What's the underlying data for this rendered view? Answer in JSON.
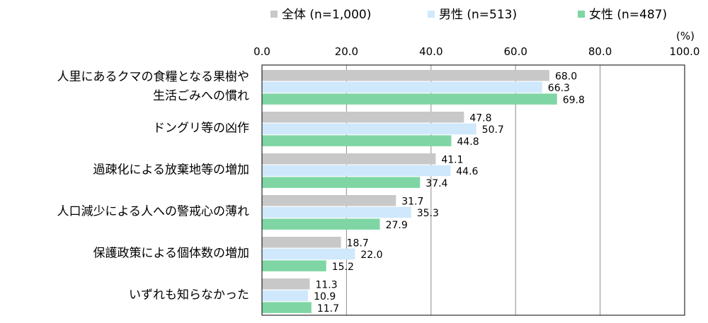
{
  "chart_data": {
    "type": "bar",
    "orientation": "horizontal",
    "unit_label": "(%)",
    "xlim": [
      0,
      100
    ],
    "ticks": [
      "0.0",
      "20.0",
      "40.0",
      "60.0",
      "80.0",
      "100.0"
    ],
    "tick_values": [
      0,
      20,
      40,
      60,
      80,
      100
    ],
    "grid": true,
    "legend_position": "top-right",
    "categories": [
      [
        "人里にあるクマの食糧となる果樹や",
        "生活ごみへの慣れ"
      ],
      [
        "ドングリ等の凶作"
      ],
      [
        "過疎化による放棄地等の増加"
      ],
      [
        "人口減少による人への警戒心の薄れ"
      ],
      [
        "保護政策による個体数の増加"
      ],
      [
        "いずれも知らなかった"
      ]
    ],
    "series": [
      {
        "name": "全体 (n=1,000)",
        "color": "#c8c8c8",
        "values": [
          68.0,
          47.8,
          41.1,
          31.7,
          18.7,
          11.3
        ],
        "labels": [
          "68.0",
          "47.8",
          "41.1",
          "31.7",
          "18.7",
          "11.3"
        ]
      },
      {
        "name": "男性 (n=513)",
        "color": "#cfe8fb",
        "values": [
          66.3,
          50.7,
          44.6,
          35.3,
          22.0,
          10.9
        ],
        "labels": [
          "66.3",
          "50.7",
          "44.6",
          "35.3",
          "22.0",
          "10.9"
        ]
      },
      {
        "name": "女性 (n=487)",
        "color": "#7fd6a4",
        "values": [
          69.8,
          44.8,
          37.4,
          27.9,
          15.2,
          11.7
        ],
        "labels": [
          "69.8",
          "44.8",
          "37.4",
          "27.9",
          "15.2",
          "11.7"
        ]
      }
    ]
  }
}
